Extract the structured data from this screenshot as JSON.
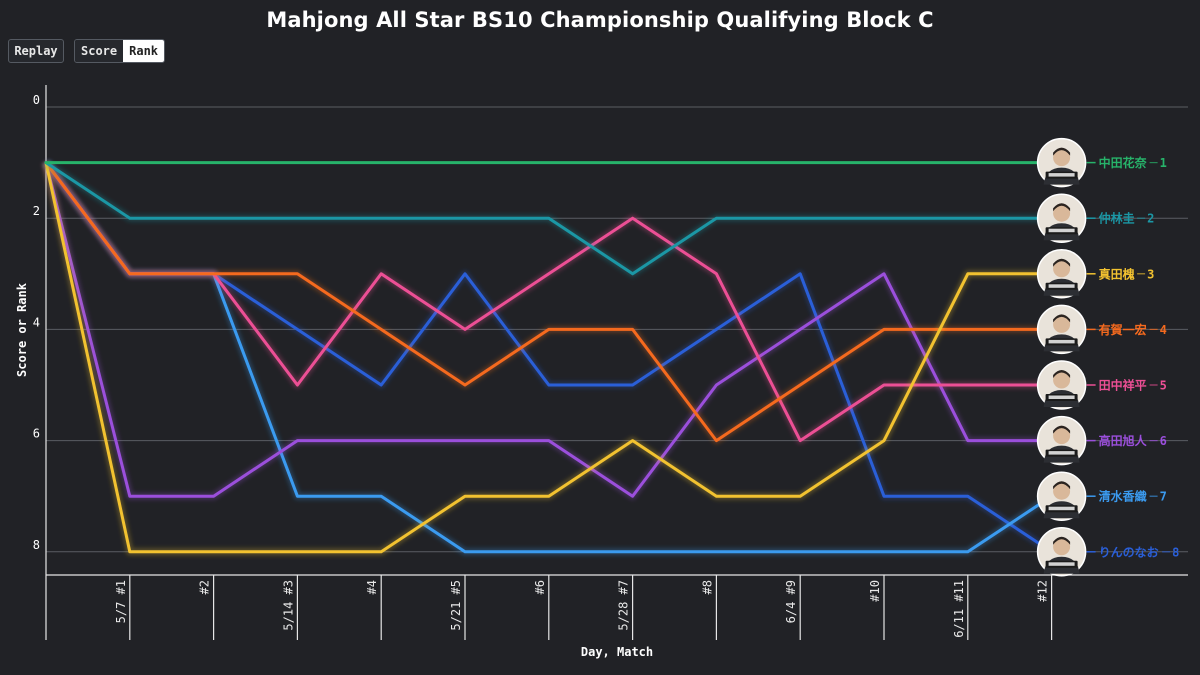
{
  "title": "Mahjong All Star BS10 Championship Qualifying Block C",
  "controls": {
    "replay_label": "Replay",
    "score_label": "Score",
    "rank_label": "Rank",
    "active": "Rank"
  },
  "chart_data": {
    "type": "line",
    "title": "Mahjong All Star BS10 Championship Qualifying Block C",
    "xlabel": "Day, Match",
    "ylabel": "Score or Rank",
    "categories": [
      "",
      "5/7 #1",
      "#2",
      "5/14 #3",
      "#4",
      "5/21 #5",
      "#6",
      "5/28 #7",
      "#8",
      "6/4 #9",
      "#10",
      "6/11 #11",
      "#12"
    ],
    "y_ticks": [
      0,
      2,
      4,
      6,
      8
    ],
    "ylim": [
      0,
      8.4
    ],
    "y_inverted": true,
    "grid": true,
    "legend_placement": "right-end",
    "series": [
      {
        "name": "中田花奈",
        "final_rank": "1",
        "color": "#27b36a",
        "avatar_icon": "portrait-icon",
        "values": [
          1,
          1,
          1,
          1,
          1,
          1,
          1,
          1,
          1,
          1,
          1,
          1,
          1
        ]
      },
      {
        "name": "仲林圭",
        "final_rank": "2",
        "color": "#1b97a5",
        "avatar_icon": "portrait-icon",
        "values": [
          1,
          2,
          2,
          2,
          2,
          2,
          2,
          3,
          2,
          2,
          2,
          2,
          2
        ]
      },
      {
        "name": "真田槐",
        "final_rank": "3",
        "color": "#f2c230",
        "avatar_icon": "portrait-icon",
        "values": [
          1,
          8,
          8,
          8,
          8,
          7,
          7,
          6,
          7,
          7,
          6,
          3,
          3
        ]
      },
      {
        "name": "有賀一宏",
        "final_rank": "4",
        "color": "#f56a1e",
        "avatar_icon": "portrait-icon",
        "values": [
          1,
          3,
          3,
          3,
          4,
          5,
          4,
          4,
          6,
          5,
          4,
          4,
          4
        ]
      },
      {
        "name": "田中祥平",
        "final_rank": "5",
        "color": "#ec4f95",
        "avatar_icon": "portrait-icon",
        "values": [
          1,
          3,
          3,
          5,
          3,
          4,
          3,
          2,
          3,
          6,
          5,
          5,
          5
        ]
      },
      {
        "name": "高田旭人",
        "final_rank": "6",
        "color": "#9b4fdc",
        "avatar_icon": "portrait-icon",
        "values": [
          1,
          7,
          7,
          6,
          6,
          6,
          6,
          7,
          5,
          4,
          3,
          6,
          6
        ]
      },
      {
        "name": "清水香織",
        "final_rank": "7",
        "color": "#3b9bf0",
        "avatar_icon": "portrait-icon",
        "values": [
          1,
          3,
          3,
          7,
          7,
          8,
          8,
          8,
          8,
          8,
          8,
          8,
          7
        ]
      },
      {
        "name": "りんのなお",
        "final_rank": "8",
        "color": "#2a5fd8",
        "avatar_icon": "portrait-icon",
        "values": [
          1,
          3,
          3,
          4,
          5,
          3,
          5,
          5,
          4,
          3,
          7,
          7,
          8
        ]
      }
    ]
  }
}
